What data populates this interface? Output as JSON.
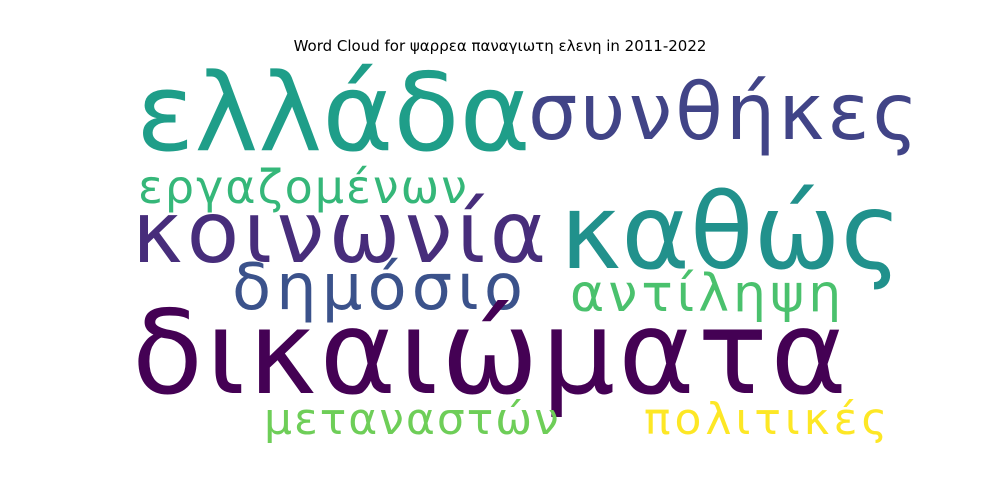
{
  "title": "Word Cloud for ψαρρεα παναγιωτη ελενη in 2011-2022",
  "words": [
    {
      "id": "w-ellada",
      "text": "ελλάδα",
      "color": "#1f9e89"
    },
    {
      "id": "w-synthikes",
      "text": "συνθήκες",
      "color": "#414487"
    },
    {
      "id": "w-ergazomenon",
      "text": "εργαζομένων",
      "color": "#35b779"
    },
    {
      "id": "w-koinonia",
      "text": "κοινωνία",
      "color": "#472d7b"
    },
    {
      "id": "w-kathos",
      "text": "καθώς",
      "color": "#21918c"
    },
    {
      "id": "w-dimosio",
      "text": "δημόσιο",
      "color": "#3b528b"
    },
    {
      "id": "w-antilipsi",
      "text": "αντίληψη",
      "color": "#4ac16d"
    },
    {
      "id": "w-dikaiomata",
      "text": "δικαιώματα",
      "color": "#440154"
    },
    {
      "id": "w-metanaston",
      "text": "μεταναστών",
      "color": "#6ece58"
    },
    {
      "id": "w-politikes",
      "text": "πολιτικές",
      "color": "#fde725"
    }
  ]
}
